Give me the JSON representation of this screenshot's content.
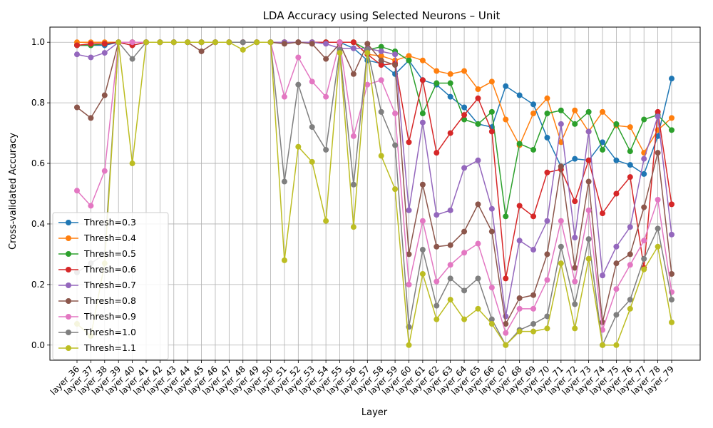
{
  "chart_data": {
    "type": "line",
    "title": "LDA Accuracy using Selected Neurons – Unit",
    "xlabel": "Layer",
    "ylabel": "Cross-validated Accuracy",
    "ylim": [
      -0.05,
      1.05
    ],
    "yticks": [
      "0.0",
      "0.2",
      "0.4",
      "0.6",
      "0.8",
      "1.0"
    ],
    "grid": true,
    "legend_position": "lower-left",
    "categories": [
      "layer_36",
      "layer_37",
      "layer_38",
      "layer_39",
      "layer_40",
      "layer_41",
      "layer_42",
      "layer_43",
      "layer_44",
      "layer_45",
      "layer_46",
      "layer_47",
      "layer_48",
      "layer_49",
      "layer_50",
      "layer_51",
      "layer_52",
      "layer_53",
      "layer_54",
      "layer_55",
      "layer_56",
      "layer_57",
      "layer_58",
      "layer_59",
      "layer_60",
      "layer_61",
      "layer_62",
      "layer_63",
      "layer_64",
      "layer_65",
      "layer_66",
      "layer_67",
      "layer_68",
      "layer_69",
      "layer_70",
      "layer_71",
      "layer_72",
      "layer_73",
      "layer_74",
      "layer_75",
      "layer_76",
      "layer_77",
      "layer_78",
      "layer_79"
    ],
    "series": [
      {
        "name": "Thresh=0.3",
        "color": "#1f77b4",
        "values": [
          0.99,
          0.99,
          0.99,
          1.0,
          0.99,
          1.0,
          1.0,
          1.0,
          1.0,
          1.0,
          1.0,
          1.0,
          1.0,
          1.0,
          1.0,
          1.0,
          1.0,
          1.0,
          1.0,
          1.0,
          0.98,
          0.94,
          0.93,
          0.895,
          0.94,
          0.875,
          0.86,
          0.82,
          0.785,
          0.73,
          0.72,
          0.855,
          0.825,
          0.795,
          0.685,
          0.59,
          0.615,
          0.61,
          0.67,
          0.61,
          0.595,
          0.565,
          0.69,
          0.88
        ]
      },
      {
        "name": "Thresh=0.4",
        "color": "#ff7f0e",
        "values": [
          1.0,
          1.0,
          1.0,
          1.0,
          1.0,
          1.0,
          1.0,
          1.0,
          1.0,
          1.0,
          1.0,
          1.0,
          1.0,
          1.0,
          1.0,
          1.0,
          1.0,
          1.0,
          1.0,
          1.0,
          1.0,
          0.96,
          0.955,
          0.94,
          0.955,
          0.94,
          0.905,
          0.895,
          0.905,
          0.845,
          0.87,
          0.745,
          0.66,
          0.765,
          0.815,
          0.67,
          0.775,
          0.705,
          0.77,
          0.725,
          0.72,
          0.635,
          0.71,
          0.75
        ]
      },
      {
        "name": "Thresh=0.5",
        "color": "#2ca02c",
        "values": [
          0.99,
          0.99,
          0.995,
          1.0,
          1.0,
          1.0,
          1.0,
          1.0,
          1.0,
          1.0,
          1.0,
          1.0,
          1.0,
          1.0,
          1.0,
          1.0,
          1.0,
          1.0,
          1.0,
          1.0,
          1.0,
          0.975,
          0.985,
          0.97,
          0.94,
          0.765,
          0.865,
          0.865,
          0.745,
          0.73,
          0.77,
          0.425,
          0.665,
          0.645,
          0.765,
          0.775,
          0.73,
          0.77,
          0.645,
          0.73,
          0.64,
          0.745,
          0.76,
          0.71
        ]
      },
      {
        "name": "Thresh=0.6",
        "color": "#d62728",
        "values": [
          0.99,
          0.995,
          0.995,
          1.0,
          0.99,
          1.0,
          1.0,
          1.0,
          1.0,
          1.0,
          1.0,
          1.0,
          1.0,
          1.0,
          1.0,
          1.0,
          1.0,
          1.0,
          1.0,
          1.0,
          1.0,
          0.96,
          0.925,
          0.93,
          0.67,
          0.875,
          0.635,
          0.7,
          0.76,
          0.815,
          0.705,
          0.22,
          0.46,
          0.425,
          0.57,
          0.58,
          0.475,
          0.61,
          0.435,
          0.5,
          0.555,
          0.255,
          0.77,
          0.465
        ]
      },
      {
        "name": "Thresh=0.7",
        "color": "#9467bd",
        "values": [
          0.96,
          0.95,
          0.965,
          1.0,
          1.0,
          1.0,
          1.0,
          1.0,
          1.0,
          1.0,
          1.0,
          1.0,
          1.0,
          1.0,
          1.0,
          1.0,
          1.0,
          1.0,
          0.995,
          0.98,
          0.98,
          0.98,
          0.97,
          0.96,
          0.445,
          0.735,
          0.43,
          0.445,
          0.585,
          0.61,
          0.45,
          0.095,
          0.345,
          0.315,
          0.41,
          0.73,
          0.355,
          0.705,
          0.23,
          0.325,
          0.39,
          0.615,
          0.755,
          0.365
        ]
      },
      {
        "name": "Thresh=0.8",
        "color": "#8c564b",
        "values": [
          0.785,
          0.75,
          0.825,
          1.0,
          1.0,
          1.0,
          1.0,
          1.0,
          1.0,
          0.97,
          1.0,
          1.0,
          1.0,
          1.0,
          1.0,
          0.995,
          1.0,
          0.995,
          0.945,
          0.995,
          0.895,
          0.995,
          0.94,
          0.925,
          0.3,
          0.53,
          0.325,
          0.33,
          0.375,
          0.465,
          0.375,
          0.07,
          0.155,
          0.165,
          0.3,
          0.59,
          0.255,
          0.54,
          0.075,
          0.27,
          0.3,
          0.455,
          0.635,
          0.235
        ]
      },
      {
        "name": "Thresh=0.9",
        "color": "#e377c2",
        "values": [
          0.51,
          0.46,
          0.575,
          1.0,
          1.0,
          1.0,
          1.0,
          1.0,
          1.0,
          1.0,
          1.0,
          1.0,
          1.0,
          1.0,
          1.0,
          0.82,
          0.95,
          0.87,
          0.82,
          1.0,
          0.69,
          0.86,
          0.875,
          0.765,
          0.2,
          0.41,
          0.21,
          0.265,
          0.305,
          0.335,
          0.19,
          0.04,
          0.12,
          0.12,
          0.215,
          0.41,
          0.21,
          0.445,
          0.05,
          0.185,
          0.265,
          0.345,
          0.48,
          0.175
        ]
      },
      {
        "name": "Thresh=1.0",
        "color": "#7f7f7f",
        "values": [
          0.24,
          0.27,
          0.3,
          1.0,
          0.945,
          1.0,
          1.0,
          1.0,
          1.0,
          1.0,
          1.0,
          1.0,
          1.0,
          1.0,
          1.0,
          0.54,
          0.86,
          0.72,
          0.645,
          0.975,
          0.53,
          0.975,
          0.77,
          0.66,
          0.06,
          0.315,
          0.13,
          0.22,
          0.18,
          0.22,
          0.085,
          0.0,
          0.05,
          0.07,
          0.095,
          0.325,
          0.135,
          0.35,
          0.0,
          0.1,
          0.15,
          0.285,
          0.385,
          0.15
        ]
      },
      {
        "name": "Thresh=1.1",
        "color": "#bcbd22",
        "values": [
          0.07,
          0.03,
          0.27,
          1.0,
          0.6,
          1.0,
          1.0,
          1.0,
          1.0,
          1.0,
          1.0,
          1.0,
          0.975,
          1.0,
          1.0,
          0.28,
          0.655,
          0.605,
          0.41,
          0.965,
          0.39,
          0.965,
          0.625,
          0.515,
          0.0,
          0.235,
          0.085,
          0.15,
          0.085,
          0.12,
          0.07,
          0.0,
          0.045,
          0.045,
          0.055,
          0.27,
          0.055,
          0.285,
          0.0,
          0.0,
          0.12,
          0.25,
          0.325,
          0.075
        ]
      }
    ]
  }
}
